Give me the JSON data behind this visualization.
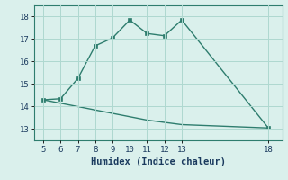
{
  "xlabel": "Humidex (Indice chaleur)",
  "line1_x": [
    5,
    6,
    7,
    8,
    9,
    10,
    11,
    12,
    13,
    18
  ],
  "line1_y": [
    14.3,
    14.35,
    15.25,
    16.7,
    17.05,
    17.85,
    17.25,
    17.15,
    17.85,
    13.05
  ],
  "line2_x": [
    5,
    6,
    7,
    8,
    9,
    10,
    11,
    12,
    13,
    18
  ],
  "line2_y": [
    14.3,
    14.15,
    14.0,
    13.85,
    13.7,
    13.55,
    13.4,
    13.3,
    13.2,
    13.05
  ],
  "line_color": "#2e7d6e",
  "bg_color": "#daf0ec",
  "grid_color": "#aed8d0",
  "xlim": [
    4.5,
    18.8
  ],
  "ylim": [
    12.5,
    18.5
  ],
  "xticks": [
    5,
    6,
    7,
    8,
    9,
    10,
    11,
    12,
    13,
    18
  ],
  "yticks": [
    13,
    14,
    15,
    16,
    17,
    18
  ],
  "marker_size": 2.5,
  "line_width": 1.0,
  "tick_fontsize": 6.5,
  "label_fontsize": 7.5
}
